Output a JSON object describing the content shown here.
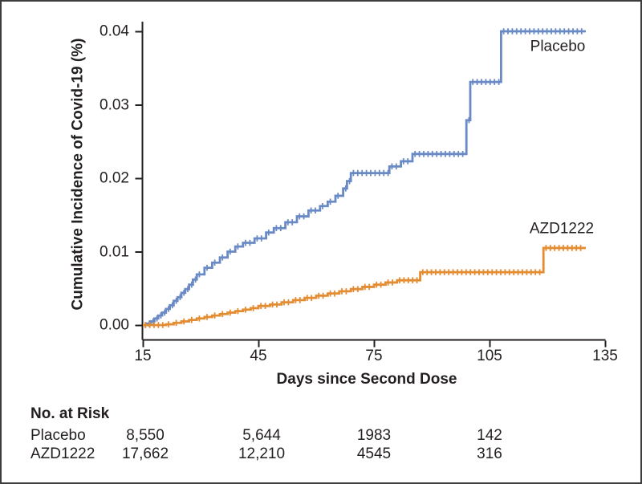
{
  "chart_data": {
    "type": "line",
    "subtype": "cumulative-incidence-step-curves-with-censor-ticks",
    "title": "",
    "ylabel": "Cumulative Incidence of Covid-19 (%)",
    "xlabel": "Days since Second Dose",
    "xlim": [
      15,
      135
    ],
    "ylim": [
      0,
      0.04
    ],
    "x_ticks": [
      15,
      45,
      75,
      105,
      135
    ],
    "x_tick_labels": [
      "15",
      "45",
      "75",
      "105",
      "135"
    ],
    "y_ticks": [
      0,
      0.01,
      0.02,
      0.03,
      0.04
    ],
    "y_tick_labels": [
      "0.00",
      "0.01",
      "0.02",
      "0.03",
      "0.04"
    ],
    "grid": false,
    "legend_position": "labels-at-curve-end",
    "axis_color": "#231f20",
    "series": [
      {
        "name": "Placebo",
        "color": "#698ac4",
        "steps": [
          [
            15,
            0
          ],
          [
            16,
            0.0002
          ],
          [
            17,
            0.0005
          ],
          [
            18,
            0.0009
          ],
          [
            19,
            0.0013
          ],
          [
            20,
            0.0017
          ],
          [
            21,
            0.0022
          ],
          [
            22,
            0.0027
          ],
          [
            23,
            0.0033
          ],
          [
            24,
            0.0038
          ],
          [
            25,
            0.0044
          ],
          [
            26,
            0.0049
          ],
          [
            27,
            0.0055
          ],
          [
            28,
            0.0062
          ],
          [
            29,
            0.0069
          ],
          [
            31,
            0.0078
          ],
          [
            33,
            0.0085
          ],
          [
            35,
            0.0092
          ],
          [
            37,
            0.01
          ],
          [
            39,
            0.0107
          ],
          [
            41,
            0.0112
          ],
          [
            44,
            0.0118
          ],
          [
            47,
            0.0126
          ],
          [
            49,
            0.0132
          ],
          [
            52,
            0.014
          ],
          [
            55,
            0.0148
          ],
          [
            58,
            0.0156
          ],
          [
            61,
            0.0162
          ],
          [
            63,
            0.0168
          ],
          [
            65,
            0.0176
          ],
          [
            67,
            0.0186
          ],
          [
            68,
            0.0196
          ],
          [
            69,
            0.0207
          ],
          [
            78,
            0.0207
          ],
          [
            79,
            0.0216
          ],
          [
            82,
            0.0223
          ],
          [
            85,
            0.0233
          ],
          [
            99,
            0.0279
          ],
          [
            100,
            0.0331
          ],
          [
            108,
            0.04
          ],
          [
            130,
            0.04
          ]
        ]
      },
      {
        "name": "AZD1222",
        "color": "#e48c32",
        "steps": [
          [
            15,
            0
          ],
          [
            21,
            0.0001
          ],
          [
            23,
            0.0003
          ],
          [
            25,
            0.0005
          ],
          [
            27,
            0.0007
          ],
          [
            29,
            0.0009
          ],
          [
            31,
            0.0011
          ],
          [
            33,
            0.0013
          ],
          [
            35,
            0.0015
          ],
          [
            37,
            0.0017
          ],
          [
            39,
            0.0019
          ],
          [
            41,
            0.0021
          ],
          [
            43,
            0.0023
          ],
          [
            45,
            0.0026
          ],
          [
            48,
            0.0028
          ],
          [
            51,
            0.0031
          ],
          [
            54,
            0.0034
          ],
          [
            57,
            0.0037
          ],
          [
            60,
            0.004
          ],
          [
            63,
            0.0043
          ],
          [
            66,
            0.0046
          ],
          [
            69,
            0.0049
          ],
          [
            72,
            0.0052
          ],
          [
            75,
            0.0055
          ],
          [
            78,
            0.0058
          ],
          [
            81,
            0.0061
          ],
          [
            87,
            0.0072
          ],
          [
            119,
            0.0105
          ],
          [
            130,
            0.0105
          ]
        ]
      }
    ]
  },
  "risk_table": {
    "title": "No. at Risk",
    "columns_days": [
      15,
      45,
      75,
      105
    ],
    "rows": [
      {
        "label": "Placebo",
        "values": [
          "8,550",
          "5,644",
          "1983",
          "142"
        ]
      },
      {
        "label": "AZD1222",
        "values": [
          "17,662",
          "12,210",
          "4545",
          "316"
        ]
      }
    ]
  }
}
